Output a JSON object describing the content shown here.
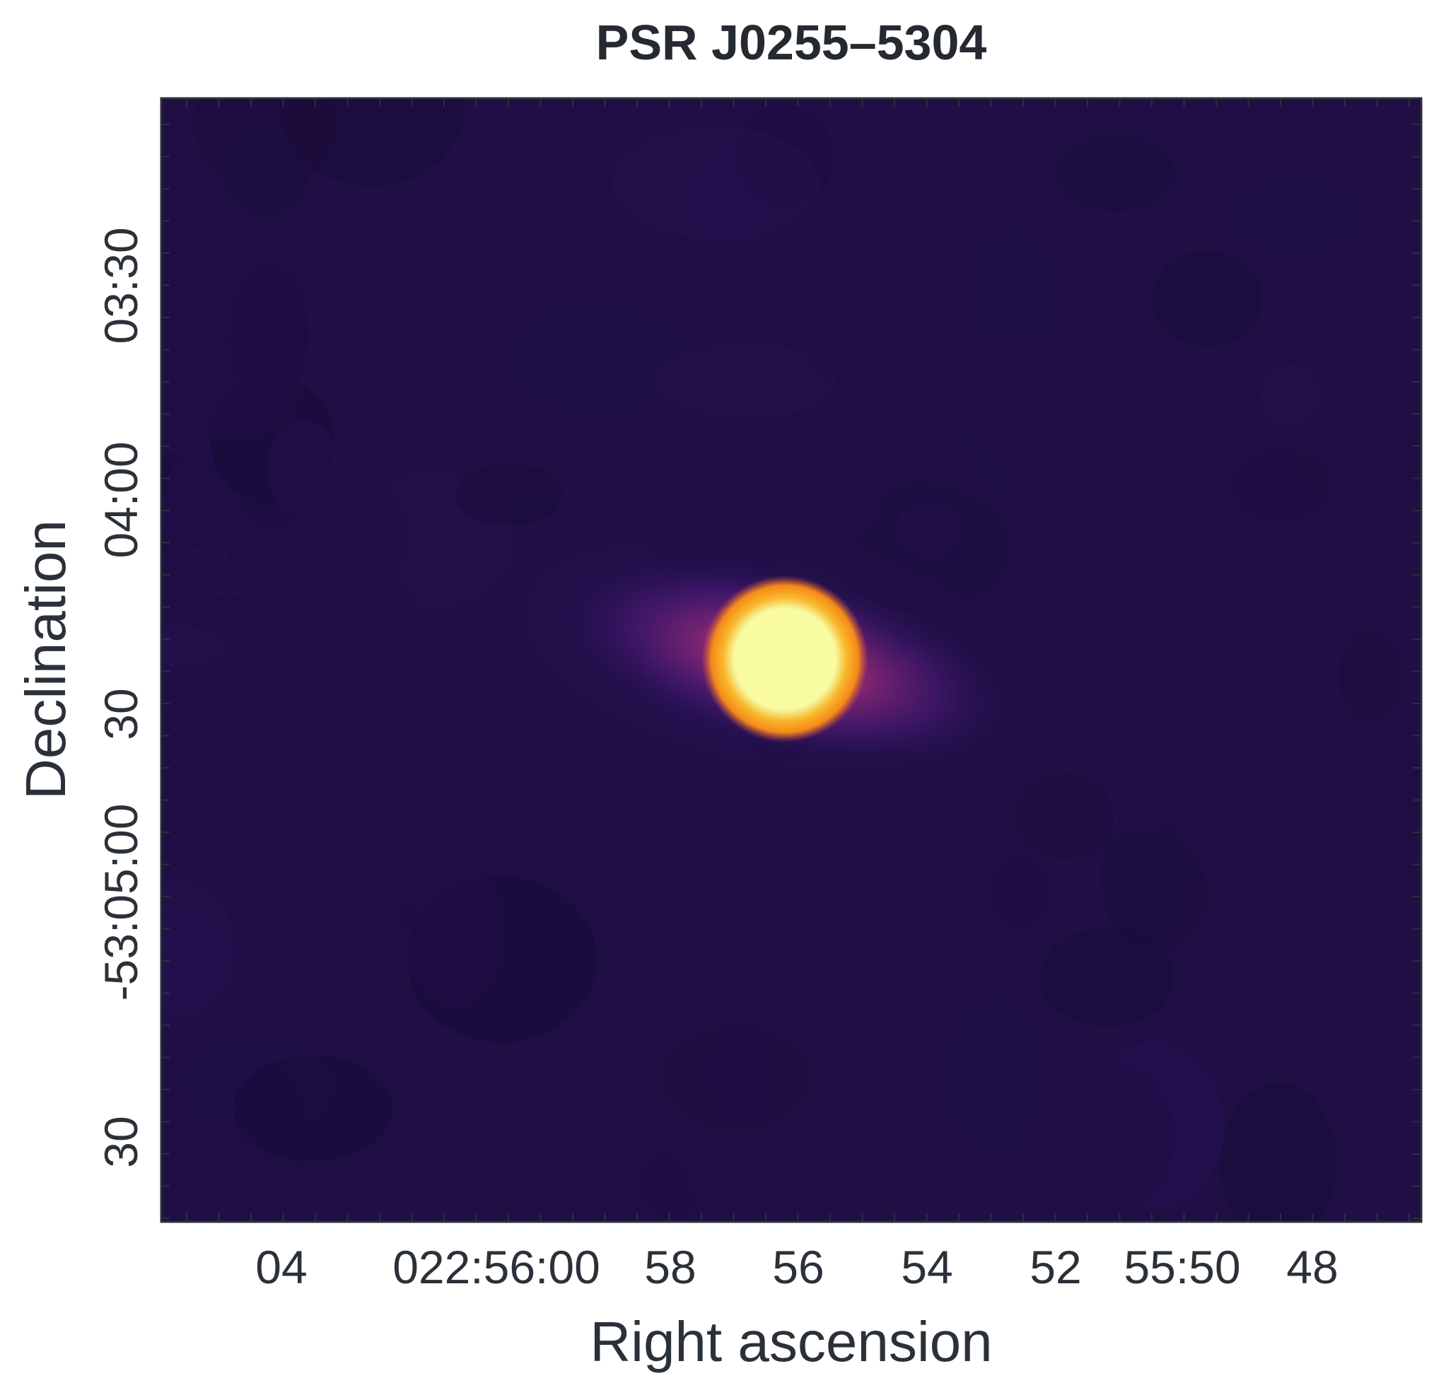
{
  "chart_data": {
    "type": "heatmap",
    "title": "PSR J0255–5304",
    "xlabel": "Right ascension",
    "ylabel": "Declination",
    "colormap": "inferno",
    "x_ticks": [
      "04",
      "022:56:00",
      "58",
      "56",
      "54",
      "52",
      "55:50",
      "48"
    ],
    "y_ticks": [
      "03:30",
      "04:00",
      "30",
      "-53:05:00",
      "30"
    ],
    "source": {
      "ra_label": "56",
      "dec_label": "30",
      "peak": 1.0
    },
    "colors": {
      "background": "#1f0f45",
      "core": "#f8fba0",
      "ring": "#f7961b",
      "halo": "#b83a6d",
      "frame": "#2b3138"
    }
  }
}
